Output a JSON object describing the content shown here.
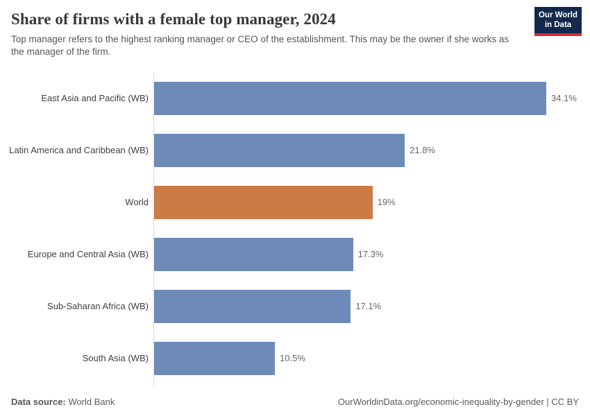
{
  "header": {
    "title": "Share of firms with a female top manager, 2024",
    "subtitle": "Top manager refers to the highest ranking manager or CEO of the establishment. This may be the owner if she works as the manager of the firm.",
    "logo": {
      "line1": "Our World",
      "line2": "in Data"
    }
  },
  "chart_data": {
    "type": "bar",
    "orientation": "horizontal",
    "title": "Share of firms with a female top manager, 2024",
    "categories": [
      "East Asia and Pacific (WB)",
      "Latin America and Caribbean (WB)",
      "World",
      "Europe and Central Asia (WB)",
      "Sub-Saharan Africa (WB)",
      "South Asia (WB)"
    ],
    "values": [
      34.1,
      21.8,
      19,
      17.3,
      17.1,
      10.5
    ],
    "value_labels": [
      "34.1%",
      "21.8%",
      "19%",
      "17.3%",
      "17.1%",
      "10.5%"
    ],
    "unit": "%",
    "xlim": [
      0,
      34.1
    ],
    "grid": false,
    "legend": false,
    "highlight_category": "World",
    "bar_color": "#6e8ab9",
    "highlight_color": "#cd7b45",
    "axis_color": "#d8d8d8"
  },
  "footer": {
    "datasource_label": "Data source:",
    "datasource_value": "World Bank",
    "url": "OurWorldinData.org/economic-inequality-by-gender",
    "separator": " | ",
    "license": "CC BY"
  }
}
